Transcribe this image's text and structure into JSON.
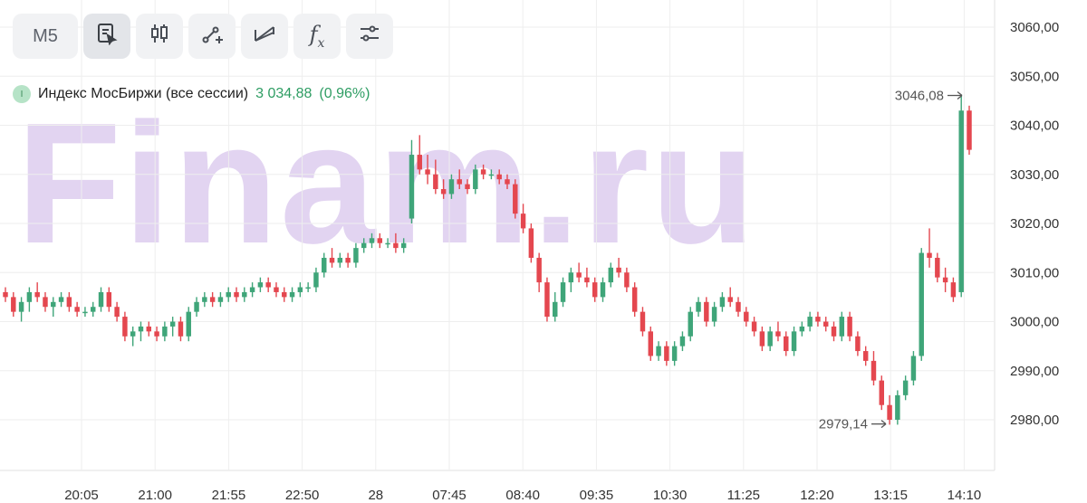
{
  "toolbar": {
    "timeframe": "M5",
    "icons": [
      "select-icon",
      "candles-icon",
      "draw-line-icon",
      "trend-fan-icon",
      "function-icon",
      "settings-sliders-icon"
    ],
    "function_label": "f",
    "function_sub": "x"
  },
  "legend": {
    "badge": "I",
    "name": "Индекс МосБиржи (все сессии)",
    "value": "3 034,88",
    "change": "(0,96%)",
    "color": "#2e9d63"
  },
  "watermark": "Finam.ru",
  "colors": {
    "up": "#3fa579",
    "down": "#e4474f",
    "grid": "#eeeeee"
  },
  "chart_data": {
    "type": "candlestick",
    "ylim": [
      2970,
      3063
    ],
    "y_ticks": [
      "3060,00",
      "3050,00",
      "3040,00",
      "3030,00",
      "3020,00",
      "3010,00",
      "3000,00",
      "2990,00",
      "2980,00"
    ],
    "y_tick_values": [
      3060,
      3050,
      3040,
      3030,
      3020,
      3010,
      3000,
      2990,
      2980
    ],
    "x_ticks": [
      "20:05",
      "21:00",
      "21:55",
      "22:50",
      "28",
      "07:45",
      "08:40",
      "09:35",
      "10:30",
      "11:25",
      "12:20",
      "13:15",
      "14:10"
    ],
    "annotations": [
      {
        "label": "3046,08",
        "value": 3046.08
      },
      {
        "label": "2979,14",
        "value": 2979.14
      }
    ],
    "candles": [
      [
        3006,
        3007,
        3004,
        3005
      ],
      [
        3005,
        3006,
        3001,
        3002
      ],
      [
        3002,
        3005,
        3000,
        3004
      ],
      [
        3004,
        3007,
        3002,
        3006
      ],
      [
        3006,
        3008,
        3004,
        3005
      ],
      [
        3005,
        3006,
        3002,
        3003
      ],
      [
        3003,
        3005,
        3001,
        3004
      ],
      [
        3004,
        3006,
        3003,
        3005
      ],
      [
        3005,
        3006,
        3002,
        3003
      ],
      [
        3003,
        3004,
        3001,
        3002
      ],
      [
        3002,
        3003,
        3001,
        3002
      ],
      [
        3002,
        3004,
        3001,
        3003
      ],
      [
        3003,
        3007,
        3002,
        3006
      ],
      [
        3006,
        3007,
        3002,
        3003
      ],
      [
        3003,
        3004,
        3000,
        3001
      ],
      [
        3001,
        3002,
        2996,
        2997
      ],
      [
        2997,
        2999,
        2995,
        2998
      ],
      [
        2998,
        3000,
        2996,
        2999
      ],
      [
        2999,
        3000,
        2997,
        2998
      ],
      [
        2998,
        2999,
        2996,
        2997
      ],
      [
        2997,
        3000,
        2996,
        2999
      ],
      [
        2999,
        3001,
        2997,
        3000
      ],
      [
        3000,
        3001,
        2996,
        2997
      ],
      [
        2997,
        3003,
        2996,
        3002
      ],
      [
        3002,
        3005,
        3001,
        3004
      ],
      [
        3004,
        3006,
        3003,
        3005
      ],
      [
        3005,
        3006,
        3003,
        3004
      ],
      [
        3004,
        3006,
        3003,
        3005
      ],
      [
        3005,
        3007,
        3004,
        3006
      ],
      [
        3006,
        3007,
        3004,
        3005
      ],
      [
        3005,
        3007,
        3004,
        3006
      ],
      [
        3006,
        3008,
        3005,
        3007
      ],
      [
        3007,
        3009,
        3006,
        3008
      ],
      [
        3008,
        3009,
        3006,
        3007
      ],
      [
        3007,
        3008,
        3005,
        3006
      ],
      [
        3006,
        3007,
        3004,
        3005
      ],
      [
        3005,
        3007,
        3004,
        3006
      ],
      [
        3006,
        3008,
        3005,
        3007
      ],
      [
        3007,
        3008,
        3006,
        3007
      ],
      [
        3007,
        3011,
        3006,
        3010
      ],
      [
        3010,
        3014,
        3009,
        3013
      ],
      [
        3013,
        3015,
        3011,
        3012
      ],
      [
        3012,
        3014,
        3011,
        3013
      ],
      [
        3013,
        3014,
        3011,
        3012
      ],
      [
        3012,
        3016,
        3011,
        3015
      ],
      [
        3015,
        3017,
        3014,
        3016
      ],
      [
        3016,
        3018,
        3015,
        3017
      ],
      [
        3017,
        3018,
        3015,
        3016
      ],
      [
        3016,
        3017,
        3015,
        3016
      ],
      [
        3016,
        3018,
        3014,
        3015
      ],
      [
        3015,
        3017,
        3014,
        3016
      ],
      [
        3021,
        3037,
        3020,
        3034
      ],
      [
        3034,
        3038,
        3030,
        3031
      ],
      [
        3031,
        3034,
        3028,
        3030
      ],
      [
        3030,
        3033,
        3026,
        3027
      ],
      [
        3027,
        3029,
        3025,
        3026
      ],
      [
        3026,
        3030,
        3025,
        3029
      ],
      [
        3029,
        3031,
        3027,
        3028
      ],
      [
        3028,
        3029,
        3026,
        3027
      ],
      [
        3027,
        3032,
        3026,
        3031
      ],
      [
        3031,
        3032,
        3029,
        3030
      ],
      [
        3030,
        3031,
        3029,
        3030
      ],
      [
        3030,
        3031,
        3028,
        3029
      ],
      [
        3029,
        3030,
        3027,
        3028
      ],
      [
        3028,
        3029,
        3021,
        3022
      ],
      [
        3022,
        3024,
        3018,
        3019
      ],
      [
        3019,
        3020,
        3012,
        3013
      ],
      [
        3013,
        3014,
        3006,
        3008
      ],
      [
        3008,
        3009,
        3000,
        3001
      ],
      [
        3001,
        3006,
        3000,
        3004
      ],
      [
        3004,
        3009,
        3003,
        3008
      ],
      [
        3008,
        3011,
        3006,
        3010
      ],
      [
        3010,
        3012,
        3008,
        3009
      ],
      [
        3009,
        3011,
        3007,
        3008
      ],
      [
        3008,
        3009,
        3004,
        3005
      ],
      [
        3005,
        3009,
        3004,
        3008
      ],
      [
        3008,
        3012,
        3007,
        3011
      ],
      [
        3011,
        3013,
        3009,
        3010
      ],
      [
        3010,
        3011,
        3006,
        3007
      ],
      [
        3007,
        3008,
        3001,
        3002
      ],
      [
        3002,
        3003,
        2997,
        2998
      ],
      [
        2998,
        2999,
        2992,
        2993
      ],
      [
        2993,
        2996,
        2992,
        2995
      ],
      [
        2995,
        2996,
        2991,
        2992
      ],
      [
        2992,
        2996,
        2991,
        2995
      ],
      [
        2995,
        2998,
        2994,
        2997
      ],
      [
        2997,
        3003,
        2996,
        3002
      ],
      [
        3002,
        3005,
        3001,
        3004
      ],
      [
        3004,
        3005,
        2999,
        3000
      ],
      [
        3000,
        3004,
        2999,
        3003
      ],
      [
        3003,
        3006,
        3002,
        3005
      ],
      [
        3005,
        3007,
        3003,
        3004
      ],
      [
        3004,
        3005,
        3001,
        3002
      ],
      [
        3002,
        3003,
        2999,
        3000
      ],
      [
        3000,
        3001,
        2997,
        2998
      ],
      [
        2998,
        2999,
        2994,
        2995
      ],
      [
        2995,
        2999,
        2994,
        2998
      ],
      [
        2998,
        3000,
        2996,
        2997
      ],
      [
        2997,
        2998,
        2993,
        2994
      ],
      [
        2994,
        2999,
        2993,
        2998
      ],
      [
        2998,
        3000,
        2997,
        2999
      ],
      [
        2999,
        3002,
        2998,
        3001
      ],
      [
        3001,
        3002,
        2999,
        3000
      ],
      [
        3000,
        3001,
        2998,
        2999
      ],
      [
        2999,
        3000,
        2996,
        2997
      ],
      [
        2997,
        3002,
        2996,
        3001
      ],
      [
        3001,
        3002,
        2996,
        2997
      ],
      [
        2997,
        2998,
        2993,
        2994
      ],
      [
        2994,
        2995,
        2991,
        2992
      ],
      [
        2992,
        2994,
        2987,
        2988
      ],
      [
        2988,
        2989,
        2982,
        2983
      ],
      [
        2983,
        2985,
        2979,
        2980
      ],
      [
        2980,
        2986,
        2979,
        2985
      ],
      [
        2985,
        2989,
        2984,
        2988
      ],
      [
        2988,
        2994,
        2987,
        2993
      ],
      [
        2993,
        3015,
        2992,
        3014
      ],
      [
        3014,
        3019,
        3011,
        3013
      ],
      [
        3013,
        3014,
        3008,
        3009
      ],
      [
        3009,
        3011,
        3006,
        3008
      ],
      [
        3008,
        3009,
        3004,
        3005
      ],
      [
        3006,
        3046,
        3005,
        3043
      ],
      [
        3043,
        3044,
        3034,
        3035
      ]
    ]
  }
}
